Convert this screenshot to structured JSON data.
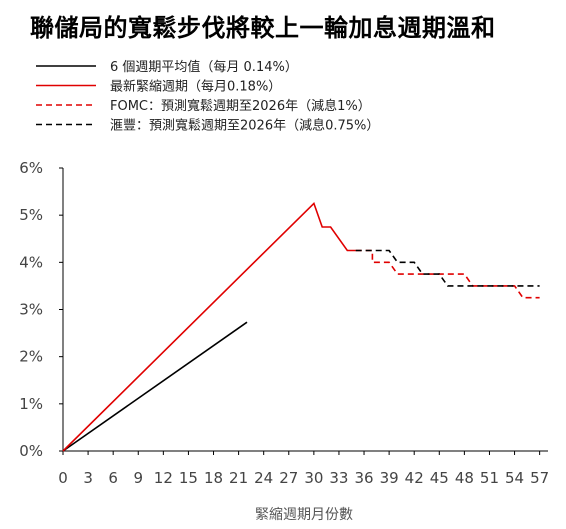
{
  "chart_data": {
    "type": "line",
    "title": "聯儲局的寬鬆步伐將較上一輪加息週期溫和",
    "xlabel": "緊縮週期月份數",
    "ylabel": "",
    "xlim": [
      0,
      58
    ],
    "ylim": [
      0,
      6
    ],
    "x_ticks": [
      0,
      3,
      6,
      9,
      12,
      15,
      18,
      21,
      24,
      27,
      30,
      33,
      36,
      39,
      42,
      45,
      48,
      51,
      54,
      57
    ],
    "y_ticks": [
      0,
      1,
      2,
      3,
      4,
      5,
      6
    ],
    "y_tick_labels": [
      "0%",
      "1%",
      "2%",
      "3%",
      "4%",
      "5%",
      "6%"
    ],
    "grid": false,
    "legend_position": "top-left",
    "series": [
      {
        "name": "6 個週期平均值（每月 0.14%）",
        "color": "#000000",
        "style": "solid",
        "points": [
          [
            0,
            0
          ],
          [
            22,
            2.73
          ]
        ]
      },
      {
        "name": "最新緊縮週期（每月0.18%）",
        "color": "#e00000",
        "style": "solid",
        "points": [
          [
            0,
            0
          ],
          [
            30,
            5.25
          ],
          [
            31,
            4.75
          ],
          [
            32,
            4.75
          ],
          [
            34,
            4.25
          ],
          [
            35,
            4.25
          ]
        ]
      },
      {
        "name": "FOMC：預測寬鬆週期至2026年（減息1%）",
        "color": "#e00000",
        "style": "dashed",
        "points": [
          [
            35,
            4.25
          ],
          [
            37,
            4.25
          ],
          [
            37,
            4.0
          ],
          [
            39,
            4.0
          ],
          [
            40,
            3.75
          ],
          [
            48,
            3.75
          ],
          [
            49,
            3.5
          ],
          [
            54,
            3.5
          ],
          [
            55,
            3.25
          ],
          [
            57,
            3.25
          ]
        ]
      },
      {
        "name": "滙豐：預測寬鬆週期至2026年（減息0.75%）",
        "color": "#000000",
        "style": "dashed",
        "points": [
          [
            35,
            4.25
          ],
          [
            39,
            4.25
          ],
          [
            40,
            4.0
          ],
          [
            42,
            4.0
          ],
          [
            43,
            3.75
          ],
          [
            45,
            3.75
          ],
          [
            46,
            3.5
          ],
          [
            57,
            3.5
          ]
        ]
      }
    ]
  }
}
